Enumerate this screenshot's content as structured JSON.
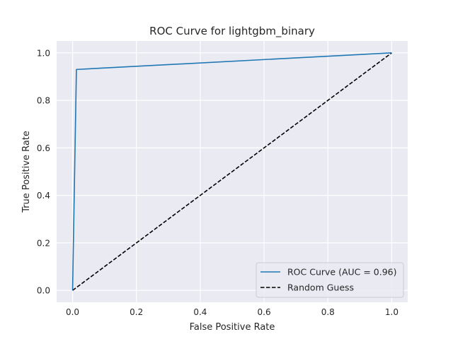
{
  "chart_data": {
    "type": "line",
    "title": "ROC Curve for lightgbm_binary",
    "xlabel": "False Positive Rate",
    "ylabel": "True Positive Rate",
    "xlim": [
      -0.05,
      1.05
    ],
    "ylim": [
      -0.05,
      1.05
    ],
    "x_ticks": [
      "0.0",
      "0.2",
      "0.4",
      "0.6",
      "0.8",
      "1.0"
    ],
    "y_ticks": [
      "0.0",
      "0.2",
      "0.4",
      "0.6",
      "0.8",
      "1.0"
    ],
    "grid": true,
    "legend_position": "lower-right",
    "series": [
      {
        "name": "ROC Curve (AUC = 0.96)",
        "color": "#1f77b4",
        "style": "solid",
        "x": [
          0.0,
          0.012,
          1.0
        ],
        "y": [
          0.0,
          0.93,
          1.0
        ]
      },
      {
        "name": "Random Guess",
        "color": "#000000",
        "style": "dashed",
        "x": [
          0.0,
          1.0
        ],
        "y": [
          0.0,
          1.0
        ]
      }
    ]
  }
}
